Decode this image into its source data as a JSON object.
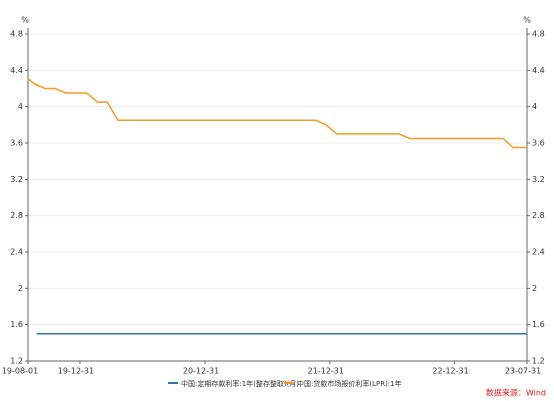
{
  "chart_data": {
    "type": "line",
    "y_unit": "%",
    "y2_unit": "%",
    "ylim": [
      1.2,
      4.8
    ],
    "yticks": [
      1.2,
      1.6,
      2,
      2.4,
      2.8,
      3.2,
      3.6,
      4,
      4.4,
      4.8
    ],
    "y2lim": [
      1.2,
      4.8
    ],
    "y2ticks": [
      1.2,
      1.6,
      2,
      2.4,
      2.8,
      3.2,
      3.6,
      4,
      4.4,
      4.8
    ],
    "xlim": [
      "19-08-01",
      "23-07-31"
    ],
    "xticks": [
      "19-08-01",
      "19-12-31",
      "20-12-31",
      "21-12-31",
      "22-12-31",
      "23-07-31"
    ],
    "grid": true,
    "series": [
      {
        "name": "中国:定期存款利率:1年(整存整取)(月)",
        "color": "#2e75b6",
        "x": [
          "19-08-26",
          "23-07-31"
        ],
        "values": [
          1.5,
          1.5
        ]
      },
      {
        "name": "中国:贷款市场报价利率(LPR):1年",
        "color": "#f59a23",
        "x": [
          "19-08-01",
          "19-08-20",
          "19-09-20",
          "19-10-20",
          "19-11-20",
          "20-01-20",
          "20-02-20",
          "20-03-20",
          "20-04-20",
          "21-11-20",
          "21-12-20",
          "22-01-20",
          "22-07-20",
          "22-08-22",
          "23-05-22",
          "23-06-20",
          "23-07-31"
        ],
        "values": [
          4.31,
          4.25,
          4.2,
          4.2,
          4.15,
          4.15,
          4.05,
          4.05,
          3.85,
          3.85,
          3.8,
          3.7,
          3.7,
          3.65,
          3.65,
          3.55,
          3.55
        ]
      }
    ],
    "source": "数据来源：Wind"
  }
}
